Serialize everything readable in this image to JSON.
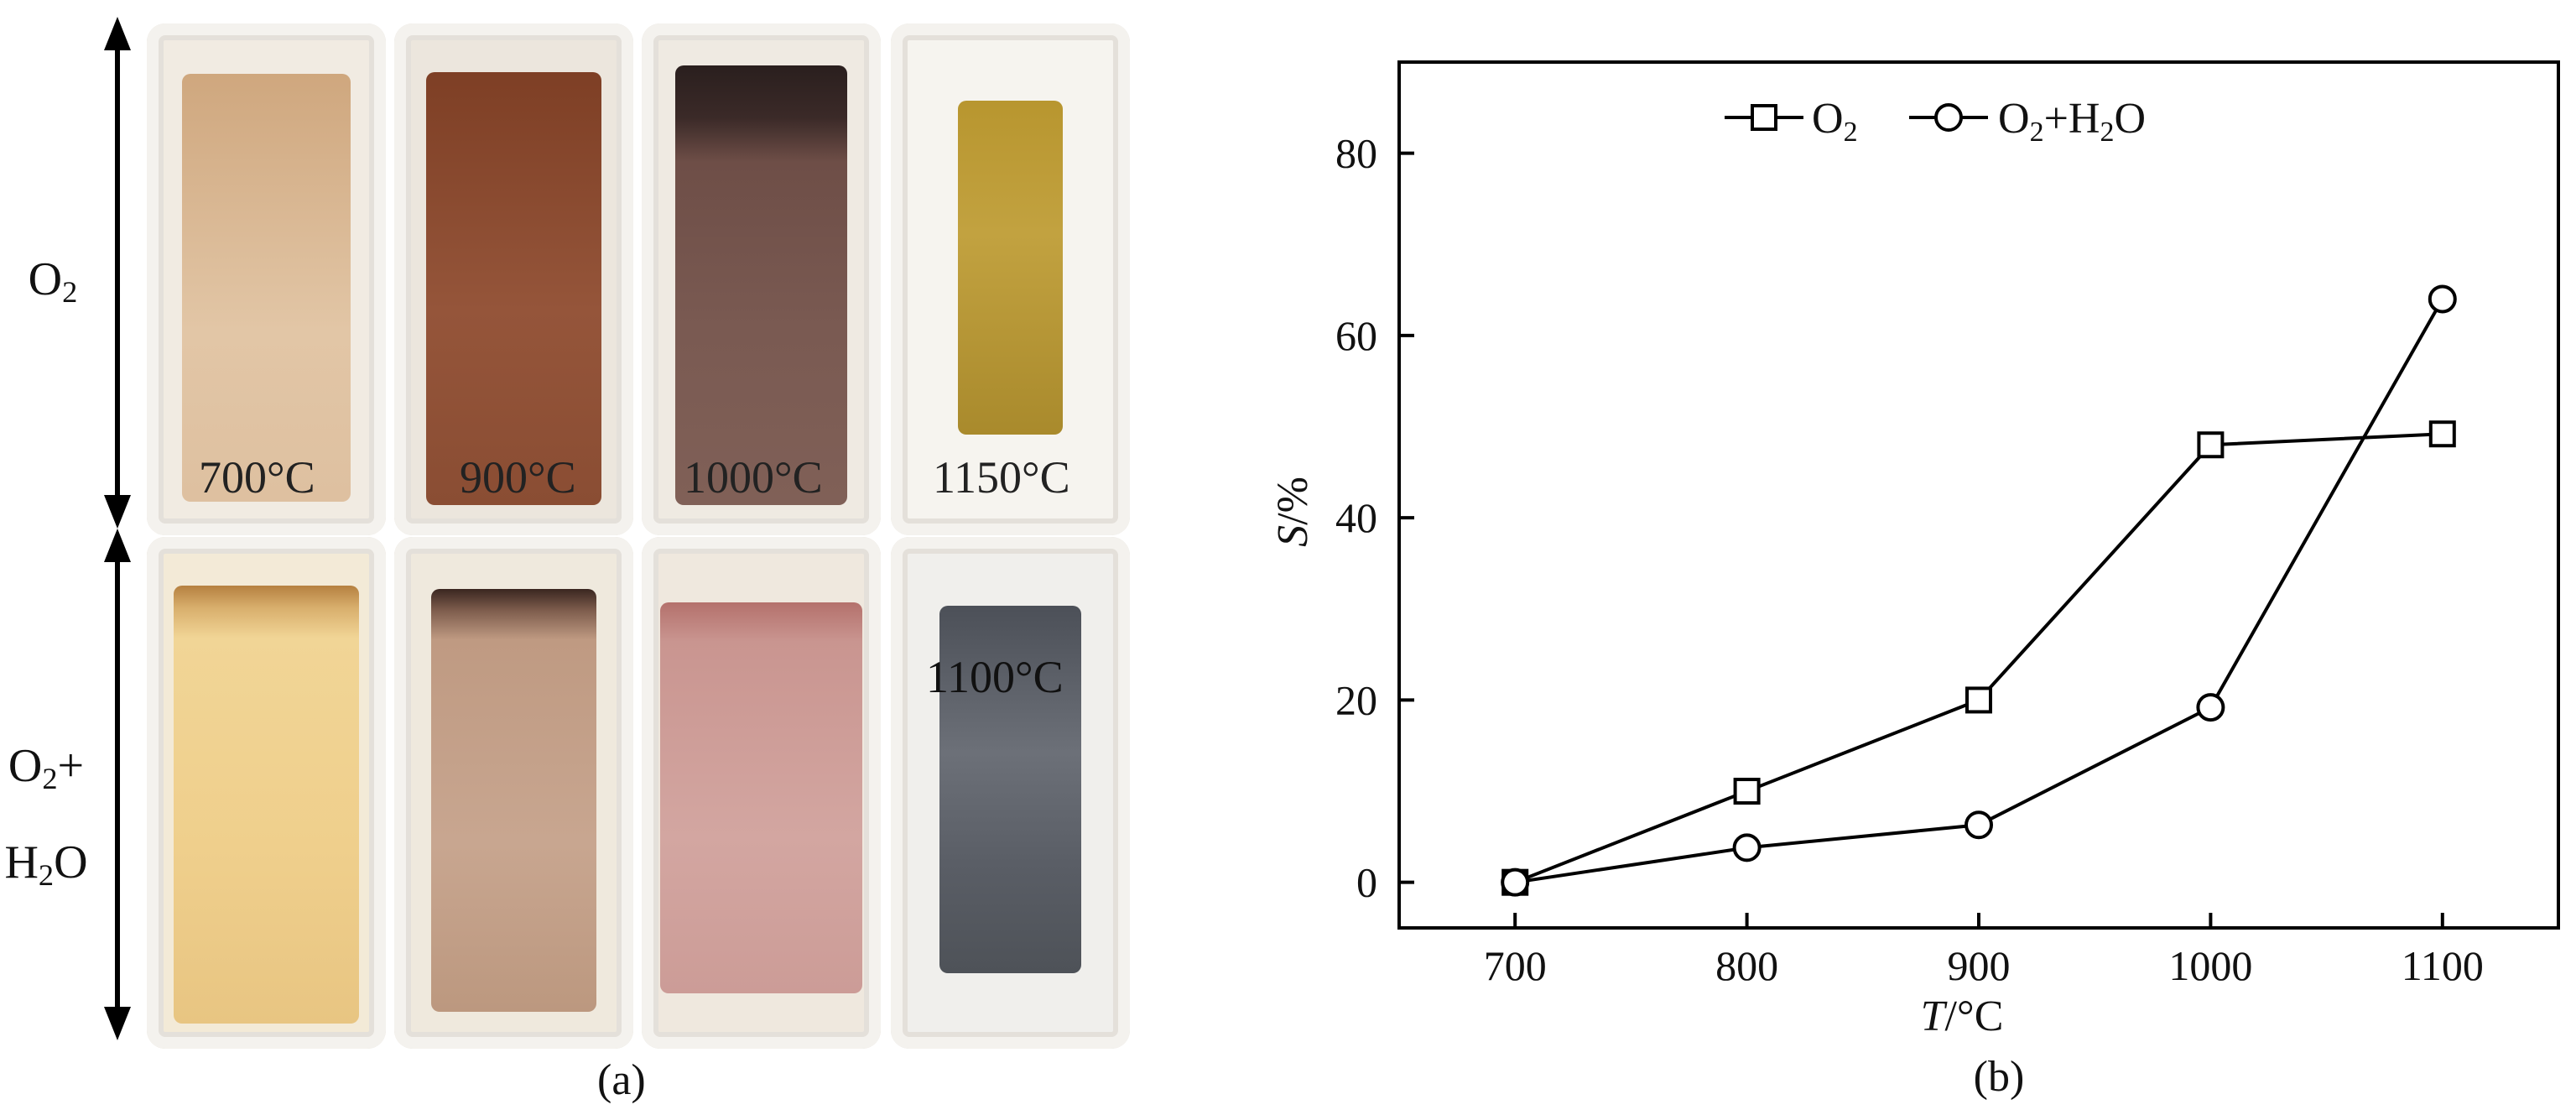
{
  "panel_a": {
    "caption": "(a)",
    "rows": [
      {
        "label": "O2",
        "label_main": "O",
        "label_sub": "2"
      },
      {
        "label": "O2+H2O",
        "line1_main": "O",
        "line1_sub": "2",
        "line1_tail": "+",
        "line2_main": "H",
        "line2_sub": "2",
        "line2_tail": "O"
      }
    ],
    "photos_top": [
      {
        "label": "700°C",
        "color": "#d8b58e",
        "edge": "#f1ebe2"
      },
      {
        "label": "900°C",
        "color": "#8a4a2c",
        "edge": "#ece6dd"
      },
      {
        "label": "1000°C",
        "color": "#6f4c44",
        "edge": "#efeae2"
      },
      {
        "label": "1150°C",
        "color": "#b8962f",
        "edge": "#f6f4ef"
      }
    ],
    "photos_bottom": [
      {
        "label": "",
        "color": "#efcf8c",
        "edge": "#f3ead7"
      },
      {
        "label": "",
        "color": "#bf9a82",
        "edge": "#efe9dd"
      },
      {
        "label": "",
        "color": "#c99590",
        "edge": "#efe8de"
      },
      {
        "label": "1100°C",
        "color": "#5f646c",
        "edge": "#f0efec"
      }
    ]
  },
  "chart_data": {
    "type": "line",
    "caption": "(b)",
    "xlabel_main": "T",
    "xlabel_unit": "/°C",
    "ylabel_main": "S",
    "ylabel_unit": "/%",
    "xlim": [
      650,
      1150
    ],
    "ylim": [
      -5,
      90
    ],
    "x_ticks": [
      700,
      800,
      900,
      1000,
      1100
    ],
    "y_ticks": [
      0,
      20,
      40,
      60,
      80
    ],
    "x": [
      700,
      800,
      900,
      1000,
      1100
    ],
    "series": [
      {
        "name": "O2",
        "name_main": "O",
        "name_sub": "2",
        "name_tail": "",
        "marker": "square",
        "values": [
          0,
          10,
          20,
          48,
          49.2
        ]
      },
      {
        "name": "O2+H2O",
        "name_main": "O",
        "name_sub": "2",
        "name_tail": "+H",
        "name_sub2": "2",
        "name_tail2": "O",
        "marker": "circle",
        "values": [
          0,
          3.8,
          6.3,
          19.2,
          64
        ]
      }
    ],
    "legend_position": "top-center",
    "grid": false
  }
}
